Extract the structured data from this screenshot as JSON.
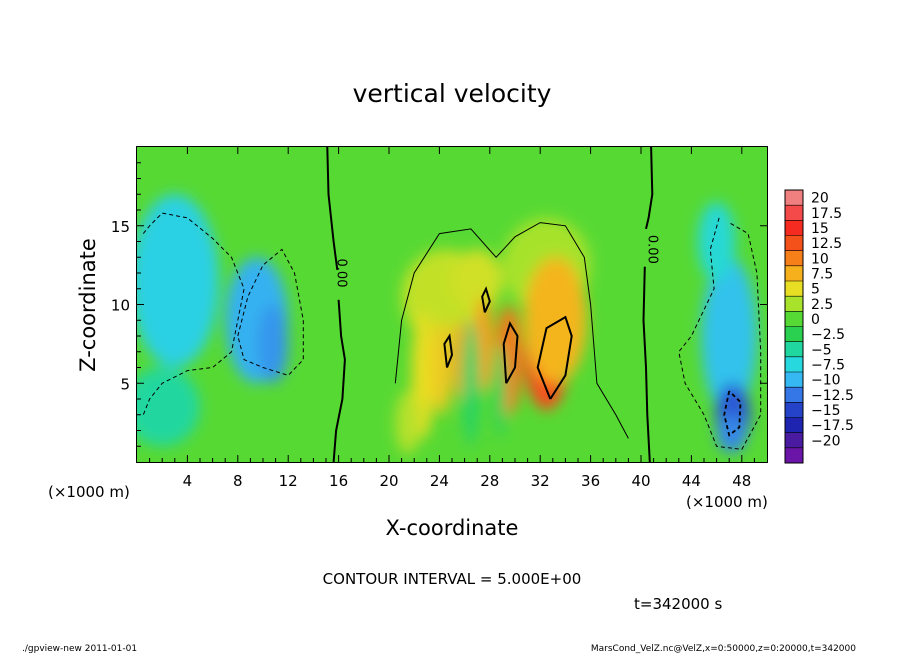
{
  "chart_data": {
    "type": "heatmap",
    "title": "vertical velocity",
    "xlabel": "X-coordinate",
    "ylabel": "Z-coordinate",
    "x_unit": "(×1000 m)",
    "x_unit_right": "(×1000 m)",
    "xlim": [
      0,
      50
    ],
    "ylim": [
      0,
      20
    ],
    "x_ticks": [
      "4",
      "8",
      "12",
      "16",
      "20",
      "24",
      "28",
      "32",
      "36",
      "40",
      "44",
      "48"
    ],
    "x_tick_values": [
      4,
      8,
      12,
      16,
      20,
      24,
      28,
      32,
      36,
      40,
      44,
      48
    ],
    "y_ticks": [
      "5",
      "10",
      "15"
    ],
    "y_tick_values": [
      5,
      10,
      15
    ],
    "colorbar": {
      "levels": [
        "20",
        "17.5",
        "15",
        "12.5",
        "10",
        "7.5",
        "5",
        "2.5",
        "0",
        "−2.5",
        "−5",
        "−7.5",
        "−10",
        "−12.5",
        "−15",
        "−17.5",
        "−20"
      ],
      "colors": [
        "#f08080",
        "#f44a4a",
        "#f52a20",
        "#f4501a",
        "#f77f1a",
        "#f5b01b",
        "#e8df25",
        "#a8e22a",
        "#56d934",
        "#2ad150",
        "#20d7a0",
        "#27d8de",
        "#36b8f2",
        "#3577e6",
        "#2443c9",
        "#1f24b0",
        "#4a1aa0",
        "#6a14a8"
      ]
    },
    "contour_labels": [
      {
        "text": "0.00",
        "x": 15.9,
        "z": 12
      },
      {
        "text": "0.00",
        "x": 40.6,
        "z": 13.5
      }
    ],
    "cells": [
      {
        "x": 3,
        "z": 11.5,
        "v": -6.5,
        "sx": 3.5,
        "sz": 5.5
      },
      {
        "x": 9.5,
        "z": 9,
        "v": -8.5,
        "sx": 2.5,
        "sz": 4
      },
      {
        "x": 10.8,
        "z": 7.5,
        "v": -9.5,
        "sx": 1.2,
        "sz": 2.5
      },
      {
        "x": 2,
        "z": 3.5,
        "v": -3.5,
        "sx": 3,
        "sz": 2.5
      },
      {
        "x": 24.5,
        "z": 10.5,
        "v": 4.5,
        "sx": 3.5,
        "sz": 3
      },
      {
        "x": 27,
        "z": 11.5,
        "v": 5,
        "sx": 2,
        "sz": 2
      },
      {
        "x": 32.5,
        "z": 12.5,
        "v": 3.5,
        "sx": 3.5,
        "sz": 3
      },
      {
        "x": 22.7,
        "z": 5.5,
        "v": 6,
        "sx": 0.9,
        "sz": 4
      },
      {
        "x": 24.2,
        "z": 6,
        "v": 7,
        "sx": 0.8,
        "sz": 3
      },
      {
        "x": 25.7,
        "z": 6.5,
        "v": 9,
        "sx": 0.6,
        "sz": 2.5
      },
      {
        "x": 27.5,
        "z": 7.5,
        "v": 9,
        "sx": 0.8,
        "sz": 3
      },
      {
        "x": 29.5,
        "z": 6.5,
        "v": 11,
        "sx": 1,
        "sz": 3.5
      },
      {
        "x": 32.5,
        "z": 6.8,
        "v": 13,
        "sx": 1.8,
        "sz": 3.5
      },
      {
        "x": 33.2,
        "z": 9,
        "v": 8,
        "sx": 2.5,
        "sz": 4
      },
      {
        "x": 21.5,
        "z": 2.5,
        "v": 4,
        "sx": 1,
        "sz": 2
      },
      {
        "x": 26.5,
        "z": 5,
        "v": -1.8,
        "sx": 0.7,
        "sz": 4
      },
      {
        "x": 28.8,
        "z": 4.5,
        "v": -1.5,
        "sx": 0.5,
        "sz": 3
      },
      {
        "x": 47,
        "z": 8,
        "v": -7.5,
        "sx": 2.2,
        "sz": 5
      },
      {
        "x": 47.3,
        "z": 3,
        "v": -12,
        "sx": 1.4,
        "sz": 2
      },
      {
        "x": 47.2,
        "z": 1.8,
        "v": -10,
        "sx": 1.2,
        "sz": 1.2
      },
      {
        "x": 46,
        "z": 14,
        "v": -5.5,
        "sx": 1.5,
        "sz": 2.5
      }
    ]
  },
  "contour_interval": "CONTOUR INTERVAL = 5.000E+00",
  "time_label": "t=342000 s",
  "footer_left": "./gpview-new   2011-01-01",
  "footer_right": "MarsCond_VelZ.nc@VelZ,x=0:50000,z=0:20000,t=342000"
}
